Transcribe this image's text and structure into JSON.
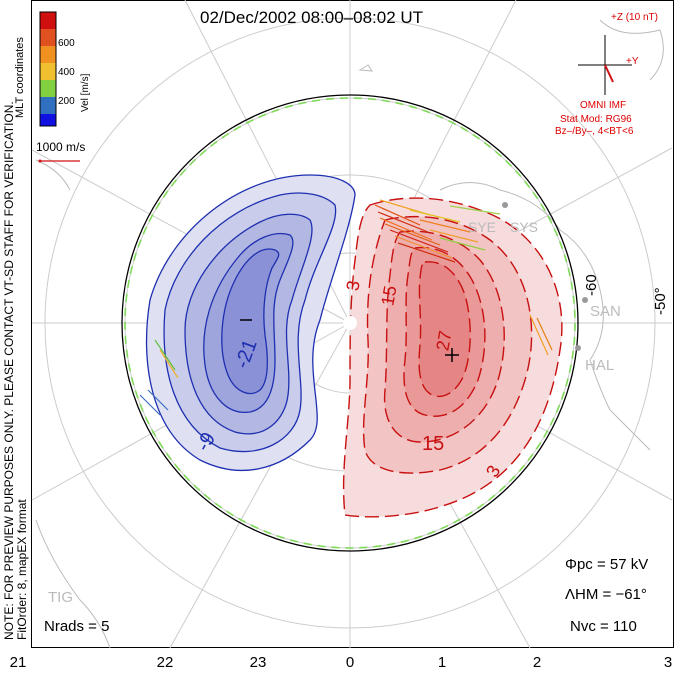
{
  "title": "02/Dec/2002 08:00–08:02 UT",
  "colorbar": {
    "label": "Vel [m/s]",
    "ticks": [
      "600",
      "400",
      "200"
    ]
  },
  "coordinates_label": "MLT coordinates",
  "scale_vector": "1000 m/s",
  "imf": {
    "z_label": "+Z (10 nT)",
    "y_label": "+Y",
    "source": "OMNI IMF"
  },
  "stat_mod": {
    "model": "Stat Mod: RG96",
    "condition": "Bz–/By–, 4<BT<6"
  },
  "stations": [
    "SYE",
    "SYS",
    "SAN",
    "HAL",
    "TIG"
  ],
  "contours": {
    "negative": [
      "-21",
      "-9"
    ],
    "positive": [
      "3",
      "15",
      "27",
      "15",
      "3"
    ]
  },
  "latitude_labels": [
    "-60",
    "-50°"
  ],
  "stats": {
    "phi_pc": "Φpc = 57 kV",
    "lambda_hm": "ΛHM = −61°",
    "n_vc": "Nvc = 110",
    "n_rads": "Nrads = 5"
  },
  "notes": {
    "preview": "NOTE: FOR PREVIEW PURPOSES ONLY. PLEASE CONTACT VT-SD STAFF FOR VERIFICATION.",
    "fit": "FitOrder: 8, mapEX format"
  },
  "mlt_axis": [
    "21",
    "22",
    "23",
    "0",
    "1",
    "2",
    "3"
  ],
  "colors": {
    "negative": "#1e2fb0",
    "positive": "#c81010",
    "boundary_green": "#7ed957"
  }
}
